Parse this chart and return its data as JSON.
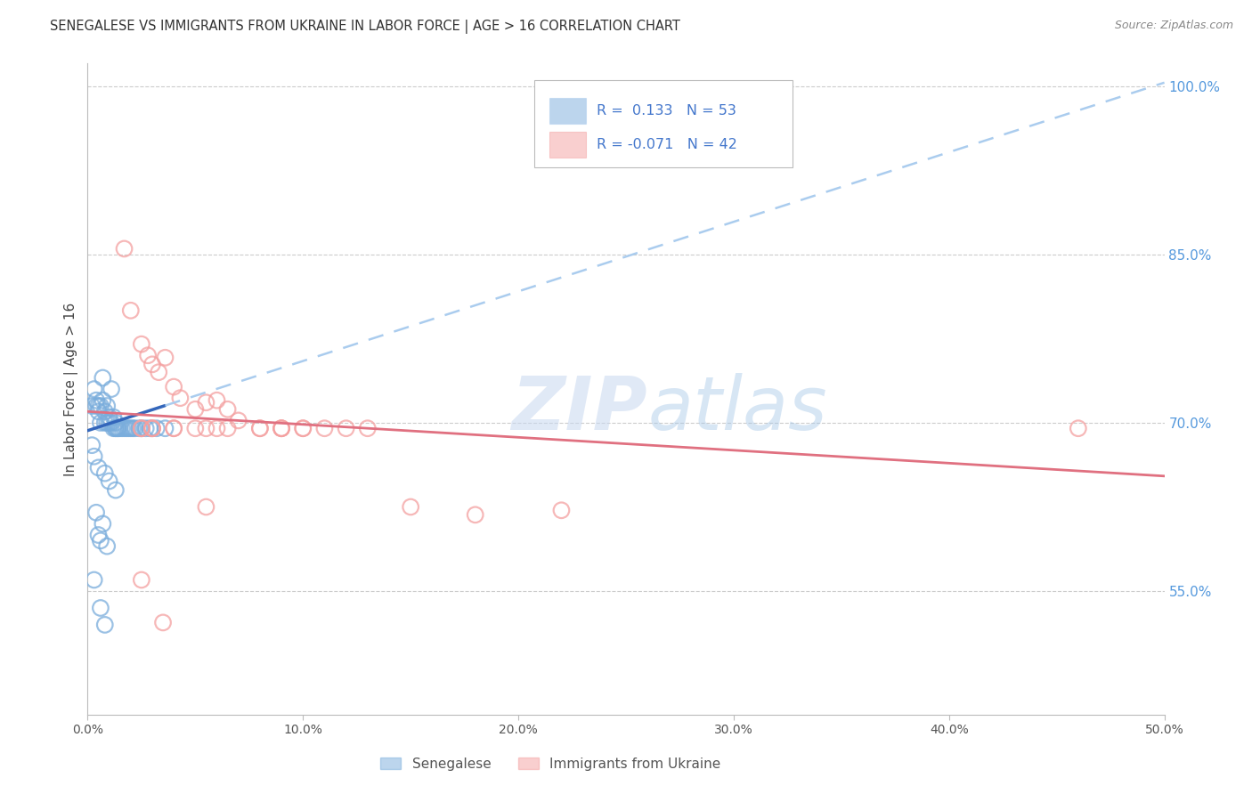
{
  "title": "SENEGALESE VS IMMIGRANTS FROM UKRAINE IN LABOR FORCE | AGE > 16 CORRELATION CHART",
  "source": "Source: ZipAtlas.com",
  "ylabel": "In Labor Force | Age > 16",
  "xlim": [
    0.0,
    0.5
  ],
  "ylim": [
    0.44,
    1.02
  ],
  "xtick_vals": [
    0.0,
    0.1,
    0.2,
    0.3,
    0.4,
    0.5
  ],
  "xtick_labels": [
    "0.0%",
    "10.0%",
    "20.0%",
    "30.0%",
    "40.0%",
    "50.0%"
  ],
  "ytick_vals": [
    0.55,
    0.7,
    0.85,
    1.0
  ],
  "ytick_labels": [
    "55.0%",
    "70.0%",
    "85.0%",
    "100.0%"
  ],
  "blue_color": "#7AADDC",
  "blue_line_color": "#3366BB",
  "blue_dash_color": "#AACCEE",
  "pink_color": "#F4A0A0",
  "pink_line_color": "#E07080",
  "blue_r_text": "R =  0.133",
  "blue_n_text": "N = 53",
  "pink_r_text": "R = -0.071",
  "pink_n_text": "N = 42",
  "legend_label_blue": "Senegalese",
  "legend_label_pink": "Immigrants from Ukraine",
  "watermark_text": "ZIPatlas",
  "blue_x": [
    0.002,
    0.003,
    0.004,
    0.004,
    0.005,
    0.005,
    0.006,
    0.006,
    0.007,
    0.007,
    0.008,
    0.008,
    0.009,
    0.009,
    0.01,
    0.01,
    0.011,
    0.011,
    0.012,
    0.012,
    0.013,
    0.013,
    0.013,
    0.014,
    0.014,
    0.015,
    0.016,
    0.017,
    0.018,
    0.019,
    0.02,
    0.021,
    0.022,
    0.024,
    0.025,
    0.027,
    0.029,
    0.032,
    0.036,
    0.002,
    0.003,
    0.005,
    0.008,
    0.01,
    0.013,
    0.004,
    0.007,
    0.005,
    0.006,
    0.009,
    0.003,
    0.006,
    0.008
  ],
  "blue_y": [
    0.715,
    0.73,
    0.715,
    0.72,
    0.71,
    0.715,
    0.7,
    0.715,
    0.72,
    0.74,
    0.7,
    0.71,
    0.7,
    0.715,
    0.7,
    0.705,
    0.7,
    0.73,
    0.695,
    0.705,
    0.695,
    0.7,
    0.695,
    0.695,
    0.695,
    0.695,
    0.695,
    0.695,
    0.695,
    0.695,
    0.695,
    0.695,
    0.695,
    0.695,
    0.695,
    0.695,
    0.695,
    0.695,
    0.695,
    0.68,
    0.67,
    0.66,
    0.655,
    0.648,
    0.64,
    0.62,
    0.61,
    0.6,
    0.595,
    0.59,
    0.56,
    0.535,
    0.52
  ],
  "pink_x": [
    0.017,
    0.02,
    0.025,
    0.028,
    0.03,
    0.033,
    0.036,
    0.04,
    0.043,
    0.05,
    0.055,
    0.06,
    0.065,
    0.07,
    0.08,
    0.09,
    0.1,
    0.11,
    0.12,
    0.15,
    0.18,
    0.22,
    0.46,
    0.025,
    0.03,
    0.04,
    0.055,
    0.065,
    0.08,
    0.09,
    0.1,
    0.13,
    0.025,
    0.035,
    0.055,
    0.025,
    0.03,
    0.06,
    0.09,
    0.03,
    0.04,
    0.05
  ],
  "pink_y": [
    0.855,
    0.8,
    0.77,
    0.76,
    0.752,
    0.745,
    0.758,
    0.732,
    0.722,
    0.712,
    0.718,
    0.72,
    0.712,
    0.702,
    0.695,
    0.695,
    0.695,
    0.695,
    0.695,
    0.625,
    0.618,
    0.622,
    0.695,
    0.695,
    0.695,
    0.695,
    0.695,
    0.695,
    0.695,
    0.695,
    0.695,
    0.695,
    0.56,
    0.522,
    0.625,
    0.695,
    0.695,
    0.695,
    0.695,
    0.695,
    0.695,
    0.695
  ]
}
